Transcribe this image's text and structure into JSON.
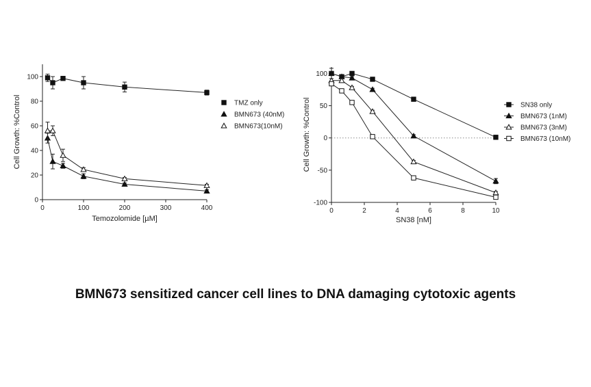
{
  "caption": "BMN673 sensitized cancer cell lines to DNA damaging cytotoxic agents",
  "chart_data": [
    {
      "type": "line",
      "title": "",
      "xlabel": "Temozolomide [µM]",
      "ylabel": "Cell Growth: %Control",
      "xlim": [
        0,
        400
      ],
      "ylim": [
        0,
        110
      ],
      "xticks": [
        0,
        100,
        200,
        300,
        400
      ],
      "yticks": [
        0,
        20,
        40,
        60,
        80,
        100
      ],
      "zero_line": false,
      "legend_position": "right",
      "series": [
        {
          "name": "TMZ only",
          "marker": "square-filled",
          "points": [
            [
              12.5,
              99
            ],
            [
              25,
              95
            ],
            [
              50,
              98.5
            ],
            [
              100,
              95
            ],
            [
              200,
              91.5
            ],
            [
              400,
              87
            ]
          ],
          "err": [
            3,
            5,
            1.5,
            5,
            4,
            2
          ]
        },
        {
          "name": "BMN673 (40nM)",
          "marker": "triangle-filled",
          "points": [
            [
              12.5,
              50
            ],
            [
              25,
              31
            ],
            [
              50,
              27.5
            ],
            [
              100,
              19
            ],
            [
              200,
              12.5
            ],
            [
              400,
              7
            ]
          ],
          "err": [
            4,
            6,
            2,
            2,
            1,
            1
          ]
        },
        {
          "name": "BMN673(10nM)",
          "marker": "triangle-open",
          "points": [
            [
              12.5,
              56
            ],
            [
              25,
              56
            ],
            [
              50,
              36
            ],
            [
              100,
              24.5
            ],
            [
              200,
              17
            ],
            [
              400,
              11.5
            ]
          ],
          "err": [
            7,
            4,
            5,
            1.5,
            1,
            1
          ]
        }
      ]
    },
    {
      "type": "line",
      "title": "",
      "xlabel": "SN38 [nM]",
      "ylabel": "Cell Growth: %Control",
      "xlim": [
        0,
        10
      ],
      "ylim": [
        -100,
        110
      ],
      "xticks": [
        0,
        2,
        4,
        6,
        8,
        10
      ],
      "yticks": [
        -100,
        -50,
        0,
        50,
        100
      ],
      "zero_line": true,
      "legend_position": "right",
      "series": [
        {
          "name": "SN38 only",
          "marker": "square-filled",
          "points": [
            [
              0,
              100
            ],
            [
              0.625,
              95
            ],
            [
              1.25,
              100
            ],
            [
              2.5,
              91
            ],
            [
              5,
              60
            ],
            [
              10,
              1
            ]
          ],
          "err": [
            8,
            3,
            3,
            2,
            2,
            1
          ]
        },
        {
          "name": "BMN673 (1nM)",
          "marker": "triangle-filled",
          "points": [
            [
              0,
              100
            ],
            [
              0.625,
              95
            ],
            [
              1.25,
              93
            ],
            [
              2.5,
              75
            ],
            [
              5,
              3
            ],
            [
              10,
              -67
            ]
          ],
          "err": [
            3,
            3,
            2,
            2,
            2,
            4
          ]
        },
        {
          "name": "BMN673 (3nM)",
          "marker": "triangle-open",
          "points": [
            [
              0,
              89
            ],
            [
              0.625,
              89
            ],
            [
              1.25,
              78
            ],
            [
              2.5,
              41
            ],
            [
              5,
              -37
            ],
            [
              10,
              -85
            ]
          ],
          "err": [
            3,
            3,
            2,
            2,
            2,
            2
          ]
        },
        {
          "name": "BMN673 (10nM)",
          "marker": "square-open",
          "points": [
            [
              0,
              84
            ],
            [
              0.625,
              73
            ],
            [
              1.25,
              55
            ],
            [
              2.5,
              2
            ],
            [
              5,
              -62
            ],
            [
              10,
              -92
            ]
          ],
          "err": [
            3,
            2,
            2,
            2,
            2,
            2
          ]
        }
      ]
    }
  ]
}
